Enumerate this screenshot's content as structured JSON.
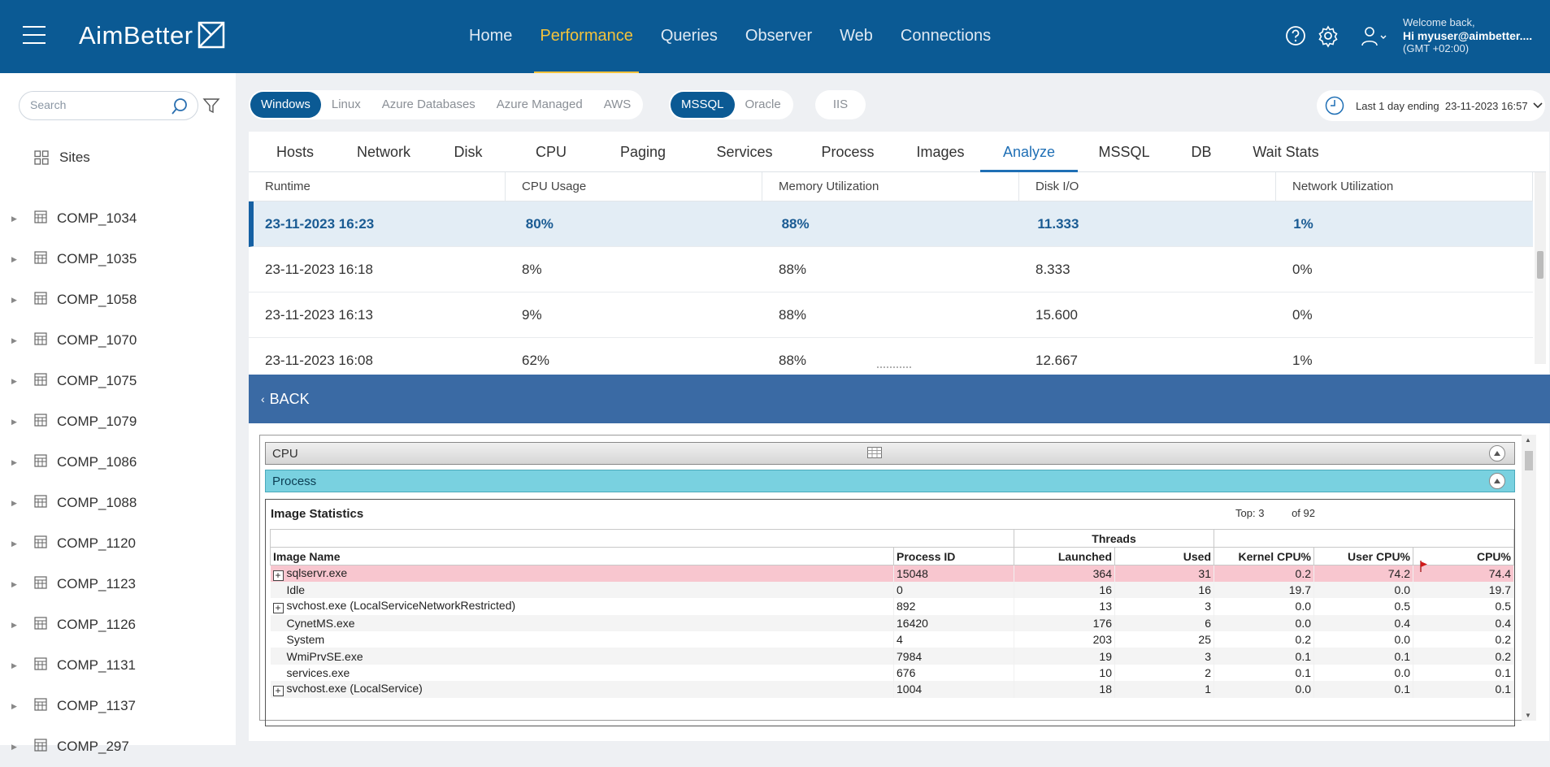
{
  "header": {
    "brand": "AimBetter",
    "nav": [
      {
        "label": "Home",
        "active": false
      },
      {
        "label": "Performance",
        "active": true
      },
      {
        "label": "Queries",
        "active": false
      },
      {
        "label": "Observer",
        "active": false
      },
      {
        "label": "Web",
        "active": false
      },
      {
        "label": "Connections",
        "active": false
      }
    ],
    "welcome": "Welcome back,",
    "user": "Hi myuser@aimbetter....",
    "timezone": "(GMT +02:00)"
  },
  "sidebar": {
    "search_placeholder": "Search",
    "sites_label": "Sites",
    "items": [
      "COMP_1034",
      "COMP_1035",
      "COMP_1058",
      "COMP_1070",
      "COMP_1075",
      "COMP_1079",
      "COMP_1086",
      "COMP_1088",
      "COMP_1120",
      "COMP_1123",
      "COMP_1126",
      "COMP_1131",
      "COMP_1137",
      "COMP_297"
    ]
  },
  "filters": {
    "platforms": [
      {
        "label": "Windows",
        "active": true
      },
      {
        "label": "Linux",
        "active": false
      },
      {
        "label": "Azure Databases",
        "active": false
      },
      {
        "label": "Azure Managed",
        "active": false
      },
      {
        "label": "AWS",
        "active": false
      }
    ],
    "engines": [
      {
        "label": "MSSQL",
        "active": true
      },
      {
        "label": "Oracle",
        "active": false
      }
    ],
    "iis": "IIS",
    "time_range": {
      "prefix": "Last 1 day ending",
      "value": "23-11-2023 16:57"
    }
  },
  "subtabs": [
    "Hosts",
    "Network",
    "Disk",
    "CPU",
    "Paging",
    "Services",
    "Process",
    "Images",
    "Analyze",
    "MSSQL",
    "DB",
    "Wait Stats"
  ],
  "active_subtab": "Analyze",
  "analyze_grid": {
    "columns": [
      "Runtime",
      "CPU Usage",
      "Memory Utilization",
      "Disk I/O",
      "Network Utilization"
    ],
    "rows": [
      [
        "23-11-2023 16:23",
        "80%",
        "88%",
        "11.333",
        "1%"
      ],
      [
        "23-11-2023 16:18",
        "8%",
        "88%",
        "8.333",
        "0%"
      ],
      [
        "23-11-2023 16:13",
        "9%",
        "88%",
        "15.600",
        "0%"
      ],
      [
        "23-11-2023 16:08",
        "62%",
        "88%",
        "12.667",
        "1%"
      ]
    ],
    "selected_index": 0
  },
  "back_label": "BACK",
  "report": {
    "section": "CPU",
    "subsection": "Process",
    "title": "Image Statistics",
    "top_label": "Top:",
    "top_value": "3",
    "of_label": "of 92",
    "group_header": "Threads",
    "columns": [
      "Image Name",
      "Process ID",
      "Launched",
      "Used",
      "Kernel CPU%",
      "User CPU%",
      "CPU%"
    ],
    "rows": [
      {
        "name": "sqlservr.exe",
        "expand": true,
        "highlight": true,
        "pid": "15048",
        "launched": "364",
        "used": "31",
        "kernel": "0.2",
        "user": "74.2",
        "cpu": "74.4"
      },
      {
        "name": "Idle",
        "expand": false,
        "highlight": false,
        "pid": "0",
        "launched": "16",
        "used": "16",
        "kernel": "19.7",
        "user": "0.0",
        "cpu": "19.7"
      },
      {
        "name": "svchost.exe (LocalServiceNetworkRestricted)",
        "expand": true,
        "highlight": false,
        "pid": "892",
        "launched": "13",
        "used": "3",
        "kernel": "0.0",
        "user": "0.5",
        "cpu": "0.5"
      },
      {
        "name": "CynetMS.exe",
        "expand": false,
        "highlight": false,
        "pid": "16420",
        "launched": "176",
        "used": "6",
        "kernel": "0.0",
        "user": "0.4",
        "cpu": "0.4"
      },
      {
        "name": "System",
        "expand": false,
        "highlight": false,
        "pid": "4",
        "launched": "203",
        "used": "25",
        "kernel": "0.2",
        "user": "0.0",
        "cpu": "0.2"
      },
      {
        "name": "WmiPrvSE.exe",
        "expand": false,
        "highlight": false,
        "pid": "7984",
        "launched": "19",
        "used": "3",
        "kernel": "0.1",
        "user": "0.1",
        "cpu": "0.2"
      },
      {
        "name": "services.exe",
        "expand": false,
        "highlight": false,
        "pid": "676",
        "launched": "10",
        "used": "2",
        "kernel": "0.1",
        "user": "0.0",
        "cpu": "0.1"
      },
      {
        "name": "svchost.exe (LocalService)",
        "expand": true,
        "highlight": false,
        "pid": "1004",
        "launched": "18",
        "used": "1",
        "kernel": "0.0",
        "user": "0.1",
        "cpu": "0.1"
      }
    ]
  },
  "colors": {
    "brand": "#0b5a94",
    "accent": "#f3c23c",
    "back_bar": "#3a6aa4",
    "process_bar": "#79d1e0",
    "highlight_row": "#f8c6cf"
  }
}
